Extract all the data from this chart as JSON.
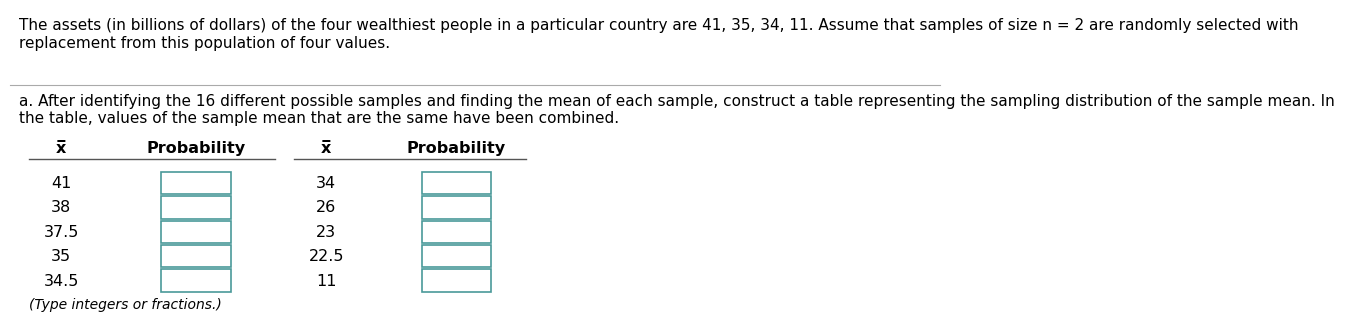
{
  "title_text": "The assets (in billions of dollars) of the four wealthiest people in a particular country are 41, 35, 34, 11. Assume that samples of size n = 2 are randomly selected with\nreplacement from this population of four values.",
  "part_a_text": "a. After identifying the 16 different possible samples and finding the mean of each sample, construct a table representing the sampling distribution of the sample mean. In\nthe table, values of the sample mean that are the same have been combined.",
  "footer_text": "(Type integers or fractions.)",
  "col1_xbar": [
    "41",
    "38",
    "37.5",
    "35",
    "34.5"
  ],
  "col2_xbar": [
    "34",
    "26",
    "23",
    "22.5",
    "11"
  ],
  "header_xbar": "x̅",
  "header_prob": "Probability",
  "bg_color": "#ffffff",
  "text_color": "#000000",
  "box_border_color": "#4a9999",
  "box_fill_color": "#ffffff",
  "separator_line_color": "#aaaaaa",
  "font_size_title": 11.0,
  "font_size_table": 11.5,
  "font_size_header": 11.5
}
